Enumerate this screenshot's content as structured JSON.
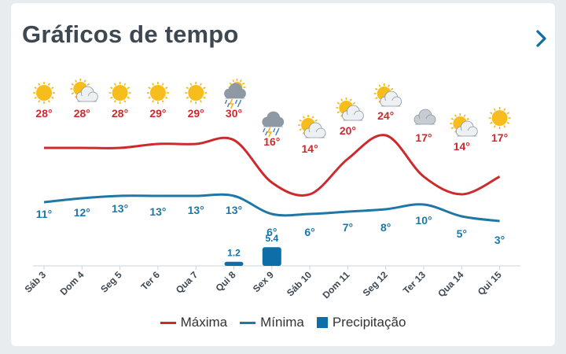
{
  "title": "Gráficos de tempo",
  "colors": {
    "max": "#cc2a2d",
    "min": "#1f77a6",
    "precip": "#0e6fa8",
    "tick": "#3d4852"
  },
  "chart_data": {
    "type": "line",
    "categories": [
      "Sáb 3",
      "Dom 4",
      "Seg 5",
      "Ter 6",
      "Qua 7",
      "Qui 8",
      "Sex 9",
      "Sáb 10",
      "Dom 11",
      "Seg 12",
      "Ter 13",
      "Qua 14",
      "Qui 15"
    ],
    "series": [
      {
        "name": "Máxima",
        "values": [
          28,
          28,
          28,
          29,
          29,
          30,
          16,
          14,
          20,
          24,
          17,
          14,
          17
        ],
        "labels": [
          "28°",
          "28°",
          "28°",
          "29°",
          "29°",
          "30°",
          "16°",
          "14°",
          "20°",
          "24°",
          "17°",
          "14°",
          "17°"
        ]
      },
      {
        "name": "Mínima",
        "values": [
          11,
          12,
          13,
          13,
          13,
          13,
          6,
          6,
          7,
          8,
          10,
          5,
          3
        ],
        "labels": [
          "11°",
          "12°",
          "13°",
          "13°",
          "13°",
          "13°",
          "6°",
          "6°",
          "7°",
          "8°",
          "10°",
          "5°",
          "3°"
        ]
      },
      {
        "name": "Precipitação",
        "values": [
          0,
          0,
          0,
          0,
          0,
          1.2,
          5.4,
          0,
          0,
          0,
          0,
          0,
          0
        ],
        "labels": [
          "",
          "",
          "",
          "",
          "",
          "1.2",
          "5.4",
          "",
          "",
          "",
          "",
          "",
          ""
        ]
      }
    ],
    "icons": [
      "sun-icon",
      "partly-cloudy-icon",
      "sun-icon",
      "sun-icon",
      "sun-icon",
      "storm-icon",
      "storm-icon",
      "partly-cloudy-icon",
      "partly-cloudy-icon",
      "partly-cloudy-icon",
      "cloud-icon",
      "partly-cloudy-icon",
      "sun-icon"
    ]
  },
  "legend": {
    "max_label": "Máxima",
    "min_label": "Mínima",
    "precip_label": "Precipitação"
  }
}
